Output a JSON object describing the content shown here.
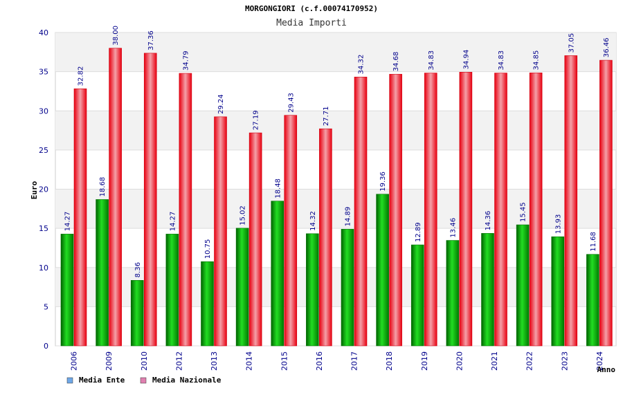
{
  "chart_data": {
    "type": "bar",
    "title": "MORGONGIORI (c.f.00074170952)",
    "subtitle": "Media Importi",
    "xlabel": "Anno",
    "ylabel": "Euro",
    "ylim": [
      0,
      40
    ],
    "yticks": [
      "0",
      "5",
      "10",
      "15",
      "20",
      "25",
      "30",
      "35",
      "40"
    ],
    "categories": [
      "2006",
      "2009",
      "2010",
      "2012",
      "2013",
      "2014",
      "2015",
      "2016",
      "2017",
      "2018",
      "2019",
      "2020",
      "2021",
      "2022",
      "2023",
      "2024"
    ],
    "series": [
      {
        "name": "Media Ente",
        "color": "#00b400",
        "legend_color": "#6fa8e8",
        "values": [
          14.27,
          18.68,
          8.36,
          14.27,
          10.75,
          15.02,
          18.48,
          14.32,
          14.89,
          19.36,
          12.89,
          13.46,
          14.36,
          15.45,
          13.93,
          11.68
        ],
        "labels": [
          "14.27",
          "18.68",
          "8.36",
          "14.27",
          "10.75",
          "15.02",
          "18.48",
          "14.32",
          "14.89",
          "19.36",
          "12.89",
          "13.46",
          "14.36",
          "15.45",
          "13.93",
          "11.68"
        ]
      },
      {
        "name": "Media Nazionale",
        "color": "#e8101c",
        "legend_color": "#e080b0",
        "values": [
          32.82,
          38.0,
          37.36,
          34.79,
          29.24,
          27.19,
          29.43,
          27.71,
          34.32,
          34.68,
          34.83,
          34.94,
          34.83,
          34.85,
          37.05,
          36.46
        ],
        "labels": [
          "32.82",
          "38.00",
          "37.36",
          "34.79",
          "29.24",
          "27.19",
          "29.43",
          "27.71",
          "34.32",
          "34.68",
          "34.83",
          "34.94",
          "34.83",
          "34.85",
          "37.05",
          "36.46"
        ]
      }
    ],
    "grid": true,
    "legend_position": "bottom-left"
  }
}
